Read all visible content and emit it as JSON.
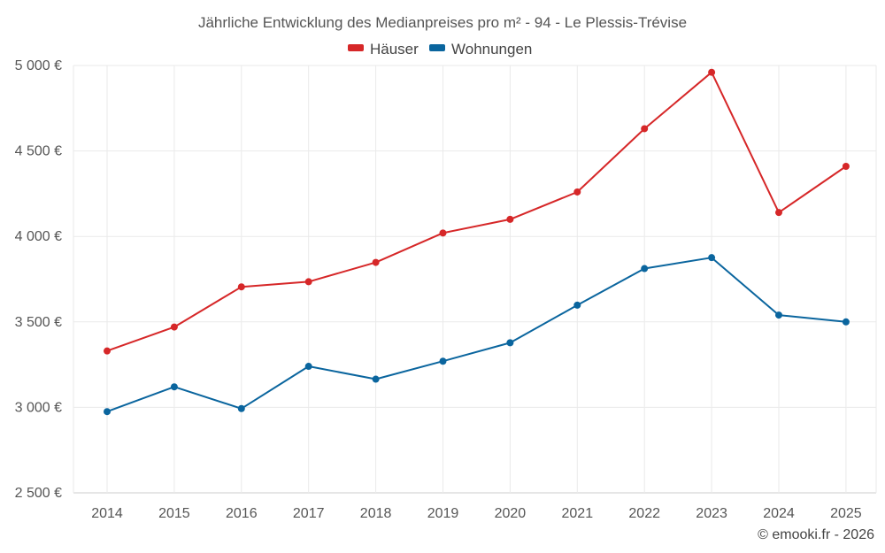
{
  "chart_data": {
    "type": "line",
    "title": "Jährliche Entwicklung des Medianpreises pro m² - 94 - Le Plessis-Trévise",
    "categories": [
      "2014",
      "2015",
      "2016",
      "2017",
      "2018",
      "2019",
      "2020",
      "2021",
      "2022",
      "2023",
      "2024",
      "2025"
    ],
    "series": [
      {
        "name": "Häuser",
        "color": "#d62728",
        "values": [
          3330,
          3470,
          3705,
          3735,
          3848,
          4020,
          4100,
          4260,
          4630,
          4960,
          4140,
          4410
        ]
      },
      {
        "name": "Wohnungen",
        "color": "#0a659e",
        "values": [
          2975,
          3120,
          2993,
          3240,
          3165,
          3270,
          3378,
          3598,
          3812,
          3876,
          3540,
          3500
        ]
      }
    ],
    "ylim": [
      2500,
      5000
    ],
    "yticks": [
      2500,
      3000,
      3500,
      4000,
      4500,
      5000
    ],
    "ytick_labels": [
      "2 500 €",
      "3 000 €",
      "3 500 €",
      "4 000 €",
      "4 500 €",
      "5 000 €"
    ],
    "grid": true,
    "legend": "top-center",
    "xlabel": "",
    "ylabel": ""
  },
  "credit": "© emooki.fr - 2026"
}
